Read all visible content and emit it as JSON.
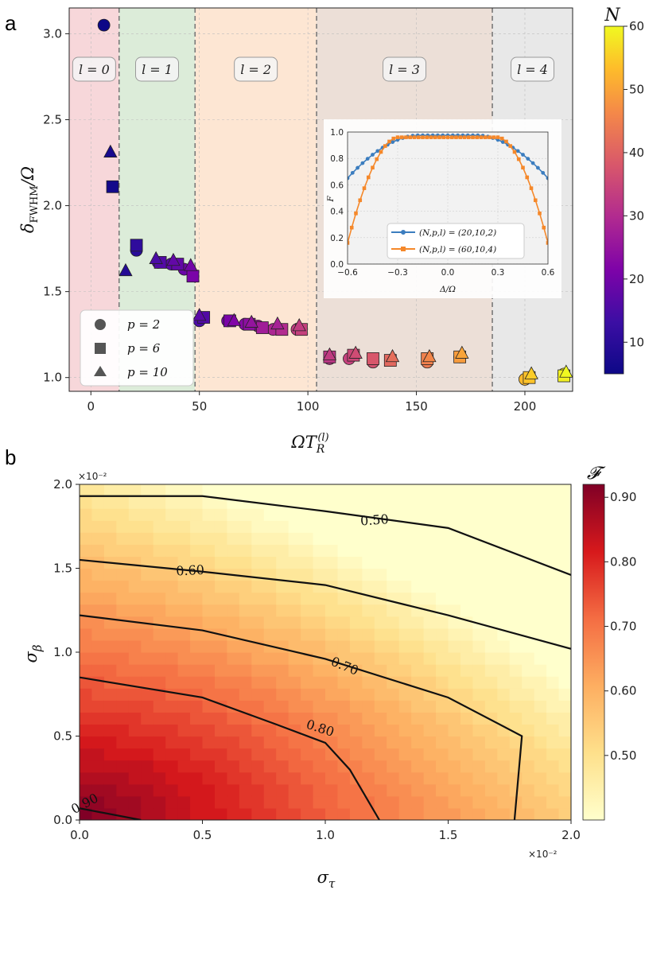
{
  "panel_a": {
    "letter": "a",
    "chart_data": {
      "type": "scatter",
      "xlabel": "ΩT_R^(l)",
      "ylabel": "δ_FWHM/Ω",
      "xlim": [
        -10,
        222
      ],
      "ylim": [
        0.92,
        3.15
      ],
      "xticks": [
        0,
        50,
        100,
        150,
        200
      ],
      "xtick_labels": [
        "0",
        "50",
        "100",
        "150",
        "200"
      ],
      "yticks": [
        1.0,
        1.5,
        2.0,
        2.5,
        3.0
      ],
      "ytick_labels": [
        "1.0",
        "1.5",
        "2.0",
        "2.5",
        "3.0"
      ],
      "regions": [
        {
          "label": "l = 0",
          "from": -10,
          "to": 13,
          "color": "#f7d7da"
        },
        {
          "label": "l = 1",
          "from": 13,
          "to": 48,
          "color": "#dcecd9"
        },
        {
          "label": "l = 2",
          "from": 48,
          "to": 104,
          "color": "#fde6d3"
        },
        {
          "label": "l = 3",
          "from": 104,
          "to": 185,
          "color": "#ecdfd7"
        },
        {
          "label": "l = 4",
          "from": 185,
          "to": 222,
          "color": "#e8e8e8"
        }
      ],
      "boundaries": [
        13,
        48,
        104,
        185
      ],
      "colorbar": {
        "title": "N",
        "min": 5,
        "max": 60,
        "ticks": [
          10,
          20,
          30,
          40,
          50,
          60
        ]
      },
      "legend": [
        {
          "marker": "circle",
          "label": "p = 2"
        },
        {
          "marker": "square",
          "label": "p = 6"
        },
        {
          "marker": "triangle",
          "label": "p = 10"
        }
      ],
      "series": [
        {
          "name": "p = 2",
          "marker": "circle",
          "points": [
            {
              "x": 6,
              "y": 3.05,
              "N": 5
            },
            {
              "x": 21,
              "y": 1.74,
              "N": 10
            },
            {
              "x": 31,
              "y": 1.67,
              "N": 15
            },
            {
              "x": 37,
              "y": 1.66,
              "N": 17
            },
            {
              "x": 43,
              "y": 1.63,
              "N": 19
            },
            {
              "x": 50,
              "y": 1.33,
              "N": 15
            },
            {
              "x": 63,
              "y": 1.33,
              "N": 20
            },
            {
              "x": 71,
              "y": 1.31,
              "N": 23
            },
            {
              "x": 77,
              "y": 1.3,
              "N": 26
            },
            {
              "x": 84,
              "y": 1.28,
              "N": 29
            },
            {
              "x": 95,
              "y": 1.28,
              "N": 33
            },
            {
              "x": 110,
              "y": 1.11,
              "N": 31
            },
            {
              "x": 119,
              "y": 1.11,
              "N": 34
            },
            {
              "x": 130,
              "y": 1.09,
              "N": 37
            },
            {
              "x": 138,
              "y": 1.1,
              "N": 40
            },
            {
              "x": 155,
              "y": 1.09,
              "N": 44
            },
            {
              "x": 170,
              "y": 1.12,
              "N": 48
            },
            {
              "x": 200,
              "y": 0.99,
              "N": 53
            },
            {
              "x": 218,
              "y": 1.02,
              "N": 58
            }
          ]
        },
        {
          "name": "p = 6",
          "marker": "square",
          "points": [
            {
              "x": 10,
              "y": 2.11,
              "N": 6
            },
            {
              "x": 21,
              "y": 1.77,
              "N": 11
            },
            {
              "x": 32,
              "y": 1.67,
              "N": 16
            },
            {
              "x": 40,
              "y": 1.66,
              "N": 18
            },
            {
              "x": 47,
              "y": 1.59,
              "N": 21
            },
            {
              "x": 52,
              "y": 1.35,
              "N": 16
            },
            {
              "x": 64,
              "y": 1.33,
              "N": 21
            },
            {
              "x": 73,
              "y": 1.31,
              "N": 24
            },
            {
              "x": 79,
              "y": 1.29,
              "N": 27
            },
            {
              "x": 88,
              "y": 1.28,
              "N": 30
            },
            {
              "x": 97,
              "y": 1.28,
              "N": 34
            },
            {
              "x": 110,
              "y": 1.12,
              "N": 32
            },
            {
              "x": 121,
              "y": 1.13,
              "N": 35
            },
            {
              "x": 130,
              "y": 1.11,
              "N": 38
            },
            {
              "x": 138,
              "y": 1.1,
              "N": 41
            },
            {
              "x": 155,
              "y": 1.11,
              "N": 45
            },
            {
              "x": 170,
              "y": 1.12,
              "N": 49
            },
            {
              "x": 202,
              "y": 1.0,
              "N": 54
            },
            {
              "x": 218,
              "y": 1.01,
              "N": 59
            }
          ]
        },
        {
          "name": "p = 10",
          "marker": "triangle",
          "points": [
            {
              "x": 9,
              "y": 2.31,
              "N": 7
            },
            {
              "x": 16,
              "y": 1.62,
              "N": 9
            },
            {
              "x": 30,
              "y": 1.69,
              "N": 15
            },
            {
              "x": 38,
              "y": 1.68,
              "N": 18
            },
            {
              "x": 46,
              "y": 1.65,
              "N": 20
            },
            {
              "x": 50,
              "y": 1.36,
              "N": 17
            },
            {
              "x": 66,
              "y": 1.33,
              "N": 22
            },
            {
              "x": 74,
              "y": 1.32,
              "N": 25
            },
            {
              "x": 86,
              "y": 1.31,
              "N": 28
            },
            {
              "x": 96,
              "y": 1.3,
              "N": 33
            },
            {
              "x": 110,
              "y": 1.13,
              "N": 33
            },
            {
              "x": 122,
              "y": 1.14,
              "N": 36
            },
            {
              "x": 139,
              "y": 1.12,
              "N": 42
            },
            {
              "x": 156,
              "y": 1.12,
              "N": 46
            },
            {
              "x": 171,
              "y": 1.14,
              "N": 50
            },
            {
              "x": 203,
              "y": 1.02,
              "N": 55
            },
            {
              "x": 219,
              "y": 1.03,
              "N": 60
            }
          ]
        }
      ],
      "inset": {
        "type": "line",
        "xlabel": "Δ/Ω",
        "ylabel": "F",
        "xlim": [
          -0.6,
          0.6
        ],
        "ylim": [
          0.0,
          1.0
        ],
        "xticks": [
          -0.6,
          -0.3,
          0.0,
          0.3,
          0.6
        ],
        "xtick_labels": [
          "−0.6",
          "−0.3",
          "0.0",
          "0.3",
          "0.6"
        ],
        "yticks": [
          0.0,
          0.2,
          0.4,
          0.6,
          0.8,
          1.0
        ],
        "ytick_labels": [
          "0.0",
          "0.2",
          "0.4",
          "0.6",
          "0.8",
          "1.0"
        ],
        "series": [
          {
            "name": "(N,p,l) = (20,10,2)",
            "color": "#3b7dbf",
            "marker": "circle",
            "plateau": 0.975,
            "flat_half_width": 0.18,
            "edge_value": 0.65
          },
          {
            "name": "(N,p,l) = (60,10,4)",
            "color": "#f5882a",
            "marker": "square",
            "plateau": 0.96,
            "flat_half_width": 0.3,
            "edge_value": 0.16
          }
        ]
      }
    }
  },
  "panel_b": {
    "letter": "b",
    "chart_data": {
      "type": "contour",
      "xlabel": "σ_τ",
      "ylabel": "σ_β",
      "xlim": [
        0.0,
        2.0
      ],
      "ylim": [
        0.0,
        2.0
      ],
      "x_exponent": "×10⁻²",
      "y_exponent": "×10⁻²",
      "xticks": [
        0.0,
        0.5,
        1.0,
        1.5,
        2.0
      ],
      "xtick_labels": [
        "0.0",
        "0.5",
        "1.0",
        "1.5",
        "2.0"
      ],
      "yticks": [
        0.0,
        0.5,
        1.0,
        1.5,
        2.0
      ],
      "ytick_labels": [
        "0.0",
        "0.5",
        "1.0",
        "1.5",
        "2.0"
      ],
      "colorbar": {
        "title": "𝓕",
        "min": 0.4,
        "max": 0.92,
        "ticks": [
          0.5,
          0.6,
          0.7,
          0.8,
          0.9
        ],
        "tick_labels": [
          "0.50",
          "0.60",
          "0.70",
          "0.80",
          "0.90"
        ]
      },
      "contours": [
        {
          "level": 0.9,
          "label": "0.90",
          "points": [
            [
              0.0,
              0.07
            ],
            [
              0.25,
              0.0
            ]
          ]
        },
        {
          "level": 0.8,
          "label": "0.80",
          "points": [
            [
              0.0,
              0.85
            ],
            [
              0.5,
              0.73
            ],
            [
              0.8,
              0.57
            ],
            [
              1.0,
              0.46
            ],
            [
              1.1,
              0.3
            ],
            [
              1.22,
              0.0
            ]
          ]
        },
        {
          "level": 0.7,
          "label": "0.70",
          "points": [
            [
              0.0,
              1.22
            ],
            [
              0.5,
              1.13
            ],
            [
              1.0,
              0.96
            ],
            [
              1.5,
              0.73
            ],
            [
              1.8,
              0.5
            ],
            [
              1.77,
              0.0
            ]
          ]
        },
        {
          "level": 0.6,
          "label": "0.60",
          "points": [
            [
              0.0,
              1.55
            ],
            [
              0.5,
              1.48
            ],
            [
              1.0,
              1.4
            ],
            [
              1.5,
              1.22
            ],
            [
              2.0,
              1.02
            ]
          ]
        },
        {
          "level": 0.5,
          "label": "0.50",
          "points": [
            [
              0.0,
              1.93
            ],
            [
              0.5,
              1.93
            ],
            [
              1.0,
              1.84
            ],
            [
              1.5,
              1.74
            ],
            [
              2.0,
              1.46
            ]
          ]
        }
      ]
    }
  }
}
